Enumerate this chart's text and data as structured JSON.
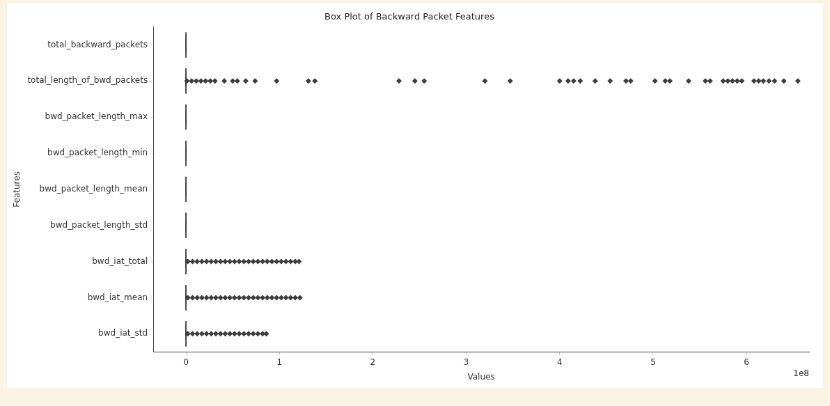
{
  "chart_data": {
    "type": "box",
    "title": "Box Plot of Backward Packet Features",
    "xlabel": "Values",
    "ylabel": "Features",
    "orientation": "horizontal",
    "color": "#3d3d3d",
    "marker": "diamond",
    "categories": [
      "total_backward_packets",
      "total_length_of_bwd_packets",
      "bwd_packet_length_max",
      "bwd_packet_length_min",
      "bwd_packet_length_mean",
      "bwd_packet_length_std",
      "bwd_iat_total",
      "bwd_iat_mean",
      "bwd_iat_std"
    ],
    "boxes": [
      {
        "low": 0,
        "q1": 0,
        "median": 0,
        "q3": 0,
        "high": 0
      },
      {
        "low": 0,
        "q1": 0,
        "median": 0,
        "q3": 0,
        "high": 0,
        "outliers": [
          0.01,
          0.06,
          0.11,
          0.16,
          0.21,
          0.26,
          0.31,
          0.41,
          0.5,
          0.55,
          0.64,
          0.74,
          0.97,
          1.31,
          1.38,
          2.28,
          2.45,
          2.55,
          3.2,
          3.47,
          4.0,
          4.09,
          4.15,
          4.22,
          4.38,
          4.54,
          4.71,
          4.76,
          5.02,
          5.13,
          5.18,
          5.38,
          5.56,
          5.61,
          5.75,
          5.8,
          5.85,
          5.9,
          5.95,
          6.08,
          6.13,
          6.18,
          6.24,
          6.3,
          6.4,
          6.55
        ]
      },
      {
        "low": 0,
        "q1": 0,
        "median": 0,
        "q3": 0,
        "high": 0
      },
      {
        "low": 0,
        "q1": 0,
        "median": 0,
        "q3": 0,
        "high": 0
      },
      {
        "low": 0,
        "q1": 0,
        "median": 0,
        "q3": 0,
        "high": 0
      },
      {
        "low": 0,
        "q1": 0,
        "median": 0,
        "q3": 0,
        "high": 0
      },
      {
        "low": 0,
        "q1": 0,
        "median": 0,
        "q3": 0,
        "high": 0,
        "outliers": [
          0.02,
          0.07,
          0.12,
          0.17,
          0.22,
          0.27,
          0.32,
          0.37,
          0.42,
          0.47,
          0.52,
          0.57,
          0.62,
          0.67,
          0.72,
          0.77,
          0.82,
          0.87,
          0.92,
          0.97,
          1.02,
          1.07,
          1.12,
          1.17,
          1.21
        ]
      },
      {
        "low": 0,
        "q1": 0,
        "median": 0,
        "q3": 0,
        "high": 0,
        "outliers": [
          0.02,
          0.07,
          0.12,
          0.17,
          0.22,
          0.27,
          0.32,
          0.37,
          0.42,
          0.47,
          0.52,
          0.57,
          0.62,
          0.67,
          0.72,
          0.77,
          0.82,
          0.87,
          0.92,
          0.97,
          1.02,
          1.07,
          1.12,
          1.17,
          1.22
        ]
      },
      {
        "low": 0,
        "q1": 0,
        "median": 0,
        "q3": 0,
        "high": 0,
        "outliers": [
          0.02,
          0.07,
          0.12,
          0.17,
          0.22,
          0.27,
          0.32,
          0.37,
          0.42,
          0.47,
          0.52,
          0.57,
          0.62,
          0.67,
          0.72,
          0.77,
          0.82,
          0.86
        ]
      }
    ],
    "xlim": [
      -0.35,
      6.67
    ],
    "xticks": [
      0,
      1,
      2,
      3,
      4,
      5,
      6
    ],
    "annotations": [
      "1e8"
    ]
  }
}
